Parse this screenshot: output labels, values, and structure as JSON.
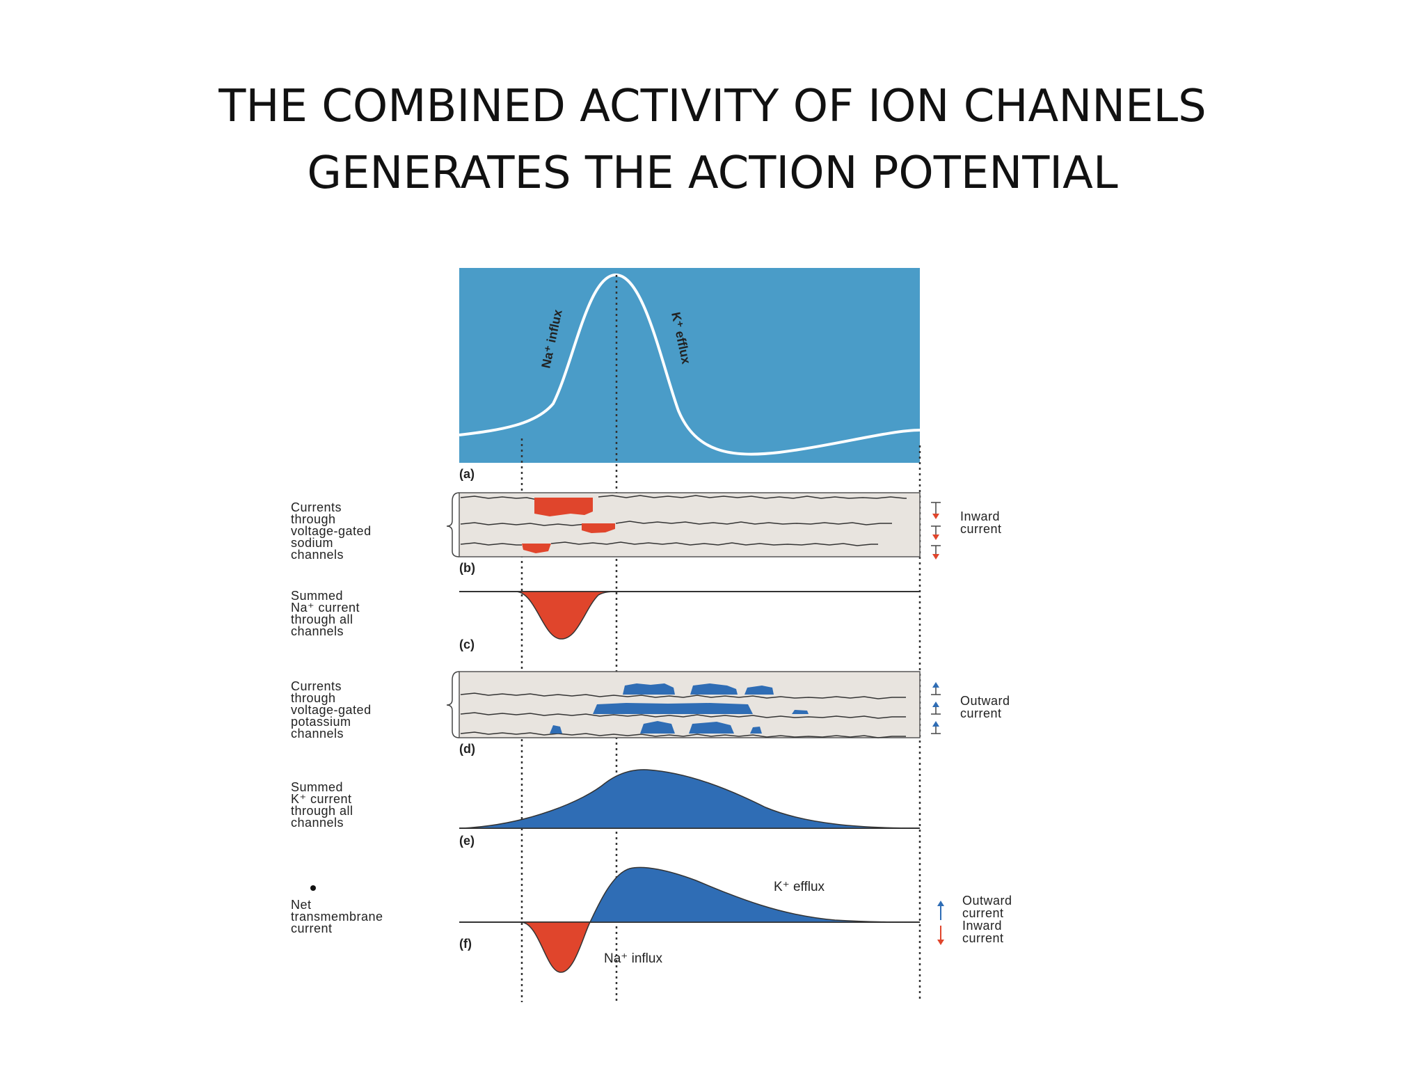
{
  "title_line1": "THE COMBINED ACTIVITY OF ION CHANNELS",
  "title_line2": "GENERATES THE ACTION POTENTIAL",
  "colors": {
    "panel_a_bg": "#4a9cc8",
    "trace_bg": "#e8e4df",
    "inward": "#e0452c",
    "outward": "#2f6db5",
    "line": "#333333"
  },
  "panel_a": {
    "letter": "(a)",
    "na_influx": "Na⁺ influx",
    "k_efflux": "K⁺ efflux"
  },
  "panel_b": {
    "letter": "(b)",
    "label_lines": [
      "Currents",
      "through",
      "voltage-gated",
      "sodium",
      "channels"
    ],
    "right_lines": [
      "Inward",
      "current"
    ]
  },
  "panel_c": {
    "letter": "(c)",
    "label_lines": [
      "Summed",
      "Na⁺ current",
      "through all",
      "channels"
    ]
  },
  "panel_d": {
    "letter": "(d)",
    "label_lines": [
      "Currents",
      "through",
      "voltage-gated",
      "potassium",
      "channels"
    ],
    "right_lines": [
      "Outward",
      "current"
    ]
  },
  "panel_e": {
    "letter": "(e)",
    "label_lines": [
      "Summed",
      "K⁺ current",
      "through all",
      "channels"
    ]
  },
  "panel_f": {
    "letter": "(f)",
    "label_lines": [
      "Net",
      "transmembrane",
      "current"
    ],
    "k_efflux": "K⁺ efflux",
    "na_influx": "Na⁺ influx",
    "legend_outward": [
      "Outward",
      "current"
    ],
    "legend_inward": [
      "Inward",
      "current"
    ]
  }
}
